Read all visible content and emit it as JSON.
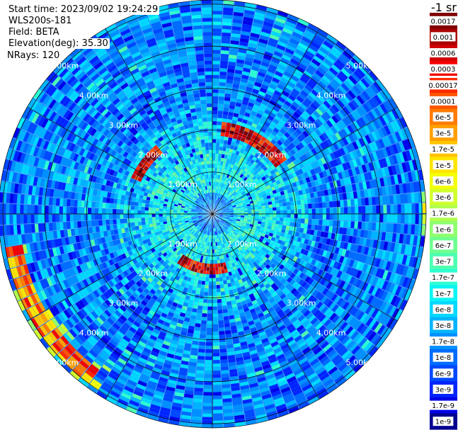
{
  "header": {
    "start_time": "Start time: 2023/09/02 19:24:29",
    "device": "WLS200s-181",
    "field": "Field: BETA",
    "elevation": "Elevation(deg): 35.30",
    "nrays": "NRays: 120",
    "units": "-1 sr"
  },
  "chart_data": {
    "type": "heatmap",
    "projection": "polar PPI",
    "nrays": 120,
    "range_rings_km": [
      1,
      2,
      3,
      4,
      5
    ],
    "range_labels": [
      "1.00km",
      "2.00km",
      "3.00km",
      "4.00km",
      "5.00km"
    ],
    "max_range_km": 5.1,
    "colorbar": {
      "labels": [
        "0.0017",
        "0.001",
        "0.0006",
        "0.0003",
        "0.00017",
        "0.0001",
        "6e-5",
        "3e-5",
        "1.7e-5",
        "1e-5",
        "6e-6",
        "3e-6",
        "1.7e-6",
        "1e-6",
        "6e-7",
        "3e-7",
        "1.7e-7",
        "1e-7",
        "6e-8",
        "3e-8",
        "1.7e-8",
        "1e-8",
        "6e-9",
        "3e-9",
        "1.7e-9",
        "1e-9"
      ],
      "colors": [
        "#7f0000",
        "#a80000",
        "#d10000",
        "#f50000",
        "#ff2a00",
        "#ff5500",
        "#ff7b00",
        "#ffa000",
        "#ffc400",
        "#ffe500",
        "#f4ff0c",
        "#d1ff2d",
        "#b0ff4e",
        "#8fff6e",
        "#6eff8f",
        "#4effb0",
        "#2dffd1",
        "#0cf4f4",
        "#00d8ff",
        "#00b4ff",
        "#0090ff",
        "#006cff",
        "#0048ff",
        "#0024ff",
        "#0000e8",
        "#00008f"
      ]
    },
    "features": [
      {
        "name": "near-ring",
        "range_km": [
          1.2,
          1.45
        ],
        "azimuth_deg": [
          165,
          215
        ],
        "level": "1e-4 to 6e-4"
      },
      {
        "name": "near-ring",
        "range_km": [
          1.9,
          2.2
        ],
        "azimuth_deg": [
          5,
          55
        ],
        "level": "1e-4 to 1e-3"
      },
      {
        "name": "near-ring",
        "range_km": [
          1.9,
          2.15
        ],
        "azimuth_deg": [
          295,
          320
        ],
        "level": "1e-4 to 1e-3"
      },
      {
        "name": "far-arc",
        "range_km": [
          4.6,
          5.0
        ],
        "azimuth_deg": [
          215,
          260
        ],
        "level": "1e-5 to 3e-4"
      },
      {
        "name": "far-edge",
        "range_km": [
          5.0,
          5.1
        ],
        "azimuth_deg": [
          85,
          95
        ],
        "level": "1e-6 to 1.7e-5"
      }
    ]
  }
}
